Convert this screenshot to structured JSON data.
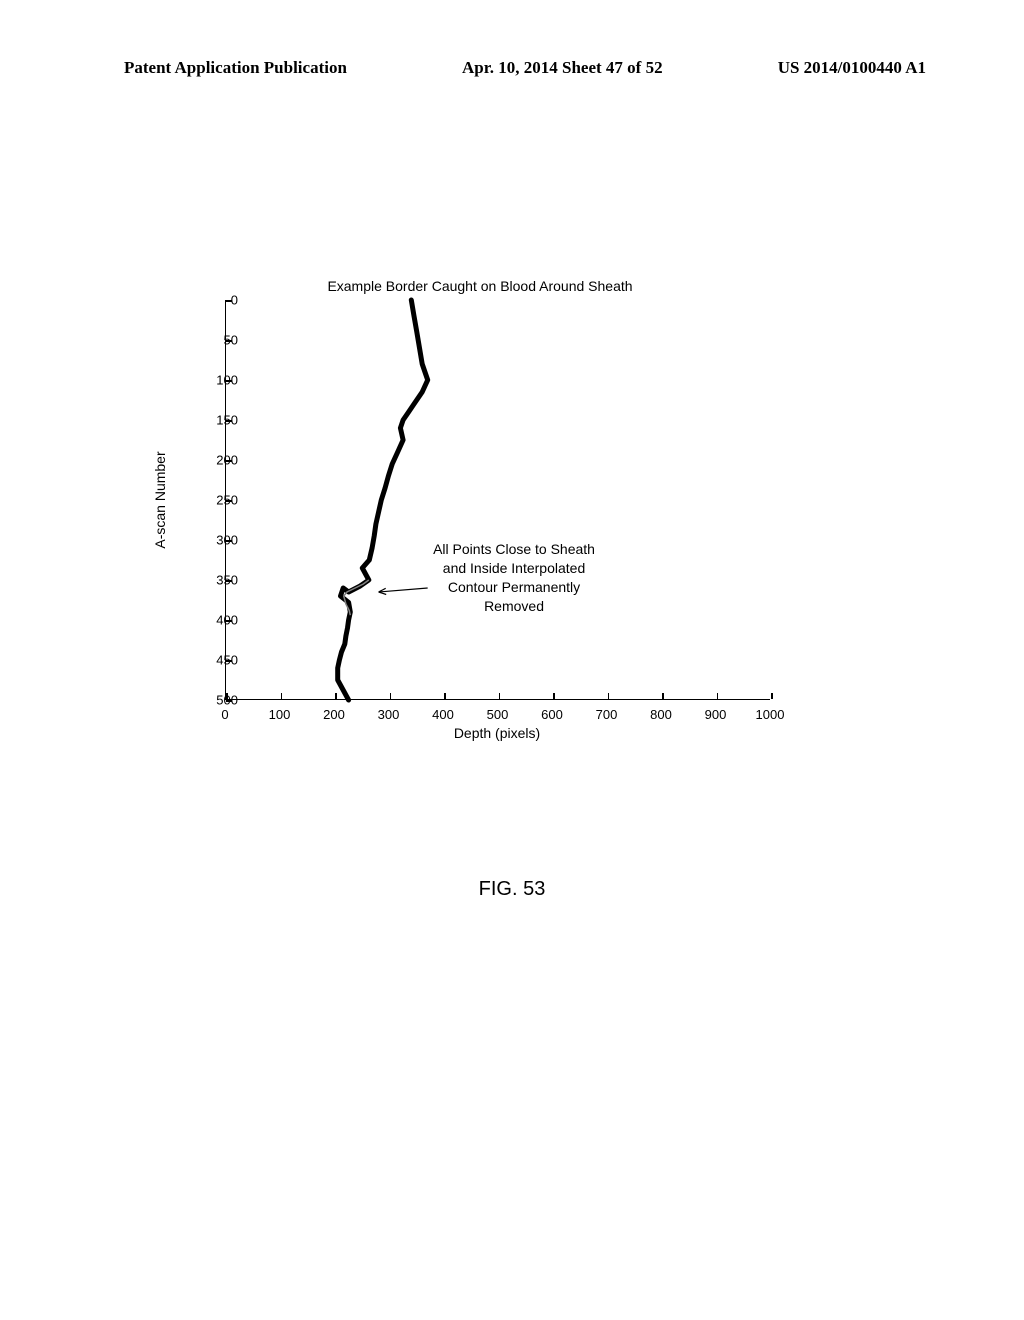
{
  "header": {
    "left": "Patent Application Publication",
    "center": "Apr. 10, 2014  Sheet 47 of 52",
    "right": "US 2014/0100440 A1"
  },
  "chart": {
    "title": "Example Border Caught on Blood Around Sheath",
    "xaxis_title": "Depth (pixels)",
    "yaxis_title": "A-scan Number",
    "xlim": [
      0,
      1000
    ],
    "ylim": [
      500,
      0
    ],
    "xticks": [
      0,
      100,
      200,
      300,
      400,
      500,
      600,
      700,
      800,
      900,
      1000
    ],
    "yticks": [
      0,
      50,
      100,
      150,
      200,
      250,
      300,
      350,
      400,
      450,
      500
    ],
    "curve_main": [
      [
        340,
        0
      ],
      [
        345,
        20
      ],
      [
        350,
        40
      ],
      [
        355,
        60
      ],
      [
        360,
        80
      ],
      [
        370,
        100
      ],
      [
        360,
        115
      ],
      [
        345,
        130
      ],
      [
        335,
        140
      ],
      [
        325,
        150
      ],
      [
        320,
        160
      ],
      [
        325,
        175
      ],
      [
        315,
        190
      ],
      [
        305,
        205
      ],
      [
        298,
        220
      ],
      [
        292,
        235
      ],
      [
        285,
        250
      ],
      [
        280,
        265
      ],
      [
        275,
        280
      ],
      [
        272,
        295
      ],
      [
        268,
        310
      ],
      [
        263,
        325
      ],
      [
        250,
        335
      ],
      [
        262,
        350
      ],
      [
        245,
        358
      ],
      [
        225,
        365
      ],
      [
        215,
        360
      ],
      [
        210,
        370
      ],
      [
        225,
        378
      ],
      [
        228,
        390
      ],
      [
        225,
        400
      ],
      [
        223,
        410
      ],
      [
        220,
        420
      ],
      [
        218,
        430
      ],
      [
        212,
        440
      ],
      [
        208,
        450
      ],
      [
        205,
        460
      ],
      [
        205,
        475
      ],
      [
        225,
        500
      ]
    ],
    "curve_interp": [
      [
        262,
        350
      ],
      [
        252,
        355
      ],
      [
        237,
        360
      ],
      [
        222,
        365
      ],
      [
        216,
        370
      ],
      [
        220,
        380
      ],
      [
        226,
        388
      ],
      [
        228,
        394
      ]
    ],
    "annotation_text": "All Points Close to Sheath\nand Inside Interpolated\nContour Permanently\nRemoved",
    "arrow": {
      "from": [
        370,
        360
      ],
      "to": [
        280,
        365
      ]
    },
    "main_color": "#000000",
    "interp_color": "#808080",
    "main_width": 5,
    "interp_width": 1.5,
    "background_color": "#ffffff"
  },
  "figure_caption": "FIG. 53"
}
